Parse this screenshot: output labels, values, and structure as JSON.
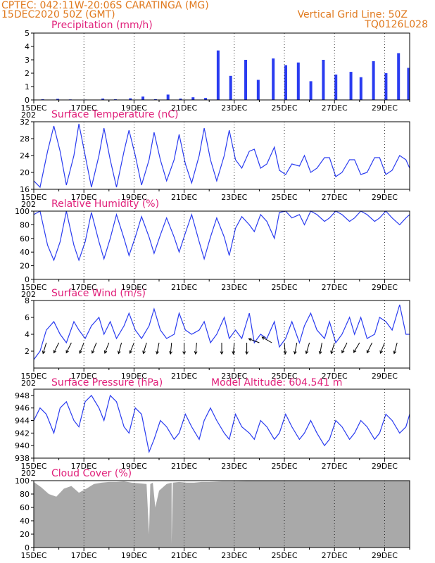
{
  "header": {
    "left_line1": "CPTEC:  042:11W-20:06S  CARATINGA (MG)",
    "left_line2": "15DEC2020 50Z (GMT)",
    "right_line1": "Vertical Grid Line: 50Z",
    "right_line2": "TQ0126L028"
  },
  "x_tick_labels": [
    "15DEC",
    "17DEC",
    "19DEC",
    "21DEC",
    "23DEC",
    "25DEC",
    "27DEC",
    "29DEC"
  ],
  "x_year_stub": "202",
  "colors": {
    "header": "#e07a1f",
    "panel_title": "#e0207a",
    "line": "#2a3cf0",
    "cloud_fill": "#a9a9a9",
    "arrow": "#000000"
  },
  "chart_data": [
    {
      "type": "bar",
      "title": "Precipitation (mm/h)",
      "ylim": [
        0,
        5
      ],
      "yticks": [
        0,
        1,
        2,
        3,
        4,
        5
      ],
      "x_range_days": [
        0,
        15
      ],
      "days": [
        0,
        0.3,
        0.9,
        1.4,
        2.0,
        2.7,
        3.2,
        3.8,
        4.3,
        4.8,
        5.3,
        5.8,
        6.3,
        6.8,
        7.3,
        7.8,
        8.4,
        8.9,
        9.5,
        10.0,
        10.5,
        11.0,
        11.5,
        12.0,
        12.6,
        13.0,
        13.5,
        14.0,
        14.5,
        14.9
      ],
      "values": [
        0.02,
        0.05,
        0.08,
        0.04,
        0.03,
        0.1,
        0.05,
        0.12,
        0.25,
        0.06,
        0.4,
        0.1,
        0.2,
        0.15,
        3.7,
        1.8,
        3.0,
        1.5,
        3.1,
        2.6,
        2.8,
        1.4,
        3.0,
        1.9,
        2.1,
        1.7,
        2.9,
        2.0,
        3.5,
        2.4
      ]
    },
    {
      "type": "line",
      "title": "Surface Temperature (nC)",
      "ylim": [
        16,
        32
      ],
      "yticks": [
        16,
        20,
        24,
        28,
        32
      ],
      "x_range_days": [
        0,
        15
      ],
      "x": [
        0,
        0.25,
        0.55,
        0.8,
        1.05,
        1.3,
        1.6,
        1.8,
        2.05,
        2.3,
        2.6,
        2.8,
        3.05,
        3.3,
        3.6,
        3.8,
        4.05,
        4.3,
        4.6,
        4.8,
        5.05,
        5.3,
        5.6,
        5.8,
        6.05,
        6.3,
        6.6,
        6.8,
        7.05,
        7.3,
        7.6,
        7.8,
        8.05,
        8.3,
        8.6,
        8.8,
        9.05,
        9.3,
        9.6,
        9.8,
        10.05,
        10.3,
        10.6,
        10.8,
        11.05,
        11.3,
        11.6,
        11.8,
        12.05,
        12.3,
        12.6,
        12.8,
        13.05,
        13.3,
        13.6,
        13.8,
        14.05,
        14.3,
        14.6,
        14.85,
        15
      ],
      "y": [
        18,
        16.5,
        25,
        31,
        25,
        17,
        24,
        31.5,
        24,
        16.5,
        24,
        30.5,
        23,
        16.5,
        25,
        30,
        24,
        17,
        23,
        29.5,
        23,
        18,
        23,
        29,
        22,
        17.5,
        24,
        30.5,
        23,
        18,
        24,
        30,
        23,
        21,
        25,
        25.5,
        21,
        22,
        26,
        20.5,
        19.5,
        22,
        21.5,
        24,
        20,
        21,
        23.5,
        23.5,
        19,
        20,
        23,
        23,
        19.5,
        20,
        23.5,
        23.5,
        19.5,
        20.5,
        24,
        23,
        21
      ]
    },
    {
      "type": "line",
      "title": "Relative Humidity (%)",
      "ylim": [
        0,
        100
      ],
      "yticks": [
        0,
        20,
        40,
        60,
        80,
        100
      ],
      "x_range_days": [
        0,
        15
      ],
      "x": [
        0,
        0.25,
        0.55,
        0.8,
        1.05,
        1.3,
        1.6,
        1.8,
        2.05,
        2.3,
        2.6,
        2.8,
        3.05,
        3.3,
        3.6,
        3.8,
        4.05,
        4.3,
        4.6,
        4.8,
        5.05,
        5.3,
        5.6,
        5.8,
        6.05,
        6.3,
        6.6,
        6.8,
        7.05,
        7.3,
        7.6,
        7.8,
        8.05,
        8.3,
        8.6,
        8.8,
        9.05,
        9.3,
        9.6,
        9.8,
        10.05,
        10.3,
        10.6,
        10.8,
        11.05,
        11.3,
        11.6,
        11.8,
        12.05,
        12.3,
        12.6,
        12.8,
        13.05,
        13.3,
        13.6,
        13.8,
        14.05,
        14.3,
        14.6,
        14.85,
        15
      ],
      "y": [
        95,
        100,
        50,
        28,
        55,
        100,
        50,
        28,
        55,
        98,
        55,
        30,
        60,
        95,
        60,
        35,
        62,
        92,
        62,
        38,
        65,
        90,
        62,
        40,
        68,
        95,
        55,
        30,
        62,
        90,
        62,
        35,
        75,
        92,
        80,
        70,
        95,
        85,
        60,
        98,
        100,
        90,
        95,
        80,
        100,
        95,
        85,
        90,
        100,
        95,
        85,
        90,
        100,
        95,
        85,
        90,
        100,
        90,
        80,
        90,
        95
      ]
    },
    {
      "type": "line",
      "title": "Surface Wind (m/s)",
      "ylim": [
        0,
        8
      ],
      "yticks": [
        2,
        4,
        6,
        8
      ],
      "x_range_days": [
        0,
        15
      ],
      "x": [
        0,
        0.25,
        0.5,
        0.8,
        1.05,
        1.3,
        1.6,
        1.8,
        2.05,
        2.3,
        2.6,
        2.8,
        3.05,
        3.3,
        3.6,
        3.8,
        4.05,
        4.3,
        4.6,
        4.8,
        5.05,
        5.3,
        5.6,
        5.8,
        6.05,
        6.3,
        6.6,
        6.8,
        7.05,
        7.3,
        7.6,
        7.8,
        8.05,
        8.3,
        8.6,
        8.8,
        9.05,
        9.3,
        9.6,
        9.8,
        10.05,
        10.3,
        10.6,
        10.8,
        11.05,
        11.3,
        11.6,
        11.8,
        12.05,
        12.3,
        12.6,
        12.8,
        13.05,
        13.3,
        13.6,
        13.8,
        14.05,
        14.3,
        14.6,
        14.85,
        15
      ],
      "y": [
        1,
        2,
        4.5,
        5.5,
        4,
        3,
        5.5,
        4.5,
        3.5,
        5,
        6,
        4,
        5.5,
        3.5,
        5,
        6.5,
        4.5,
        3.5,
        5,
        7,
        4.5,
        3.5,
        4,
        6.5,
        4.5,
        4,
        4.5,
        5.5,
        3,
        4,
        6,
        3.5,
        4.5,
        3.5,
        6.5,
        3,
        4,
        3.5,
        5.5,
        2.5,
        3.5,
        5.5,
        3,
        5,
        6.5,
        4.5,
        3.5,
        5.5,
        3,
        4,
        6,
        4,
        6,
        3.5,
        4,
        6,
        5.5,
        4.5,
        7.5,
        4,
        4
      ],
      "arrows_days": [
        0.5,
        1.0,
        1.5,
        2.0,
        2.5,
        3.0,
        3.5,
        4.0,
        4.5,
        5.0,
        5.5,
        6.0,
        6.5,
        7.5,
        8.0,
        8.5,
        9.0,
        9.5,
        10.0,
        10.5,
        11.0,
        11.5,
        12.0,
        12.5,
        13.0,
        13.5,
        14.0,
        14.5
      ],
      "arrows_u": [
        -0.3,
        -0.5,
        -0.6,
        -0.4,
        -0.5,
        -0.4,
        -0.3,
        -0.4,
        -0.3,
        -0.2,
        -0.1,
        0.0,
        -0.1,
        0.0,
        -0.1,
        0.0,
        -0.8,
        -0.7,
        0.1,
        -0.2,
        -0.3,
        -0.2,
        -0.3,
        -0.5,
        -0.6,
        -0.5,
        -0.4,
        -0.3
      ],
      "arrows_v": [
        -1.0,
        -1.0,
        -1.2,
        -1.0,
        -1.2,
        -1.0,
        -1.1,
        -1.0,
        -1.0,
        -1.0,
        -1.0,
        -1.0,
        -1.0,
        -1.0,
        -1.2,
        -1.0,
        0.3,
        0.4,
        -1.2,
        -1.0,
        -1.0,
        -1.1,
        -1.0,
        -1.0,
        -1.0,
        -1.0,
        -1.0,
        -1.1
      ]
    },
    {
      "type": "line",
      "title": "Surface Pressure (hPa)",
      "annotation": "Model Altitude: 604.541  m",
      "ylim": [
        938,
        949
      ],
      "yticks": [
        938,
        940,
        942,
        944,
        946,
        948
      ],
      "x_range_days": [
        0,
        15
      ],
      "x": [
        0,
        0.25,
        0.5,
        0.8,
        1.05,
        1.3,
        1.6,
        1.8,
        2.05,
        2.3,
        2.6,
        2.8,
        3.05,
        3.3,
        3.6,
        3.8,
        4.05,
        4.3,
        4.6,
        4.8,
        5.05,
        5.3,
        5.6,
        5.8,
        6.05,
        6.3,
        6.6,
        6.8,
        7.05,
        7.3,
        7.6,
        7.8,
        8.05,
        8.3,
        8.6,
        8.8,
        9.05,
        9.3,
        9.6,
        9.8,
        10.05,
        10.3,
        10.6,
        10.8,
        11.05,
        11.3,
        11.6,
        11.8,
        12.05,
        12.3,
        12.6,
        12.8,
        13.05,
        13.3,
        13.6,
        13.8,
        14.05,
        14.3,
        14.6,
        14.85,
        15
      ],
      "y": [
        944,
        946,
        945,
        942,
        946,
        947,
        944,
        943,
        947,
        948,
        946,
        944,
        948,
        947,
        943,
        942,
        946,
        945,
        939,
        941,
        944,
        943,
        941,
        942,
        945,
        943,
        941,
        944,
        946,
        944,
        942,
        941,
        945,
        943,
        942,
        941,
        944,
        943,
        941,
        942,
        945,
        943,
        941,
        942,
        944,
        942,
        940,
        941,
        944,
        943,
        941,
        942,
        944,
        943,
        941,
        942,
        945,
        944,
        942,
        943,
        945
      ]
    },
    {
      "type": "area",
      "title": "Cloud Cover (%)",
      "ylim": [
        0,
        100
      ],
      "yticks": [
        0,
        20,
        40,
        60,
        80,
        100
      ],
      "x_range_days": [
        0,
        15
      ],
      "x": [
        0,
        0.3,
        0.6,
        0.9,
        1.2,
        1.5,
        1.8,
        2.1,
        2.4,
        2.7,
        3.0,
        3.3,
        3.6,
        3.9,
        4.2,
        4.5,
        4.6,
        4.65,
        4.75,
        4.85,
        5.0,
        5.3,
        5.5,
        5.5,
        5.55,
        5.8,
        6.1,
        6.4,
        6.7,
        7.0,
        7.5,
        8.0,
        9.0,
        10.0,
        11.0,
        12.0,
        13.0,
        14.0,
        15.0
      ],
      "y": [
        98,
        90,
        80,
        76,
        88,
        92,
        82,
        88,
        95,
        97,
        98,
        98,
        99,
        97,
        96,
        95,
        20,
        95,
        97,
        60,
        85,
        95,
        97,
        5,
        97,
        98,
        97,
        97,
        98,
        98,
        99,
        99,
        100,
        100,
        100,
        100,
        100,
        100,
        100
      ]
    }
  ]
}
